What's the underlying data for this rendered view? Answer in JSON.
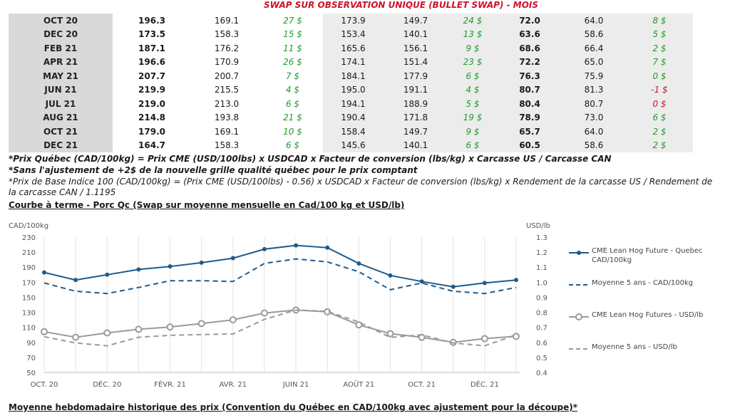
{
  "header": {
    "title": "SWAP SUR OBSERVATION UNIQUE (BULLET SWAP) - MOIS"
  },
  "table": {
    "rows": [
      [
        "OCT 20",
        "196.3",
        "169.1",
        "27 $",
        "173.9",
        "149.7",
        "24 $",
        "72.0",
        "64.0",
        "8 $"
      ],
      [
        "DEC 20",
        "173.5",
        "158.3",
        "15 $",
        "153.4",
        "140.1",
        "13 $",
        "63.6",
        "58.6",
        "5 $"
      ],
      [
        "FEB 21",
        "187.1",
        "176.2",
        "11 $",
        "165.6",
        "156.1",
        "9 $",
        "68.6",
        "66.4",
        "2 $"
      ],
      [
        "APR 21",
        "196.6",
        "170.9",
        "26 $",
        "174.1",
        "151.4",
        "23 $",
        "72.2",
        "65.0",
        "7 $"
      ],
      [
        "MAY 21",
        "207.7",
        "200.7",
        "7 $",
        "184.1",
        "177.9",
        "6 $",
        "76.3",
        "75.9",
        "0 $"
      ],
      [
        "JUN 21",
        "219.9",
        "215.5",
        "4 $",
        "195.0",
        "191.1",
        "4 $",
        "80.7",
        "81.3",
        "-1 $"
      ],
      [
        "JUL 21",
        "219.0",
        "213.0",
        "6 $",
        "194.1",
        "188.9",
        "5 $",
        "80.4",
        "80.7",
        "0 $"
      ],
      [
        "AUG 21",
        "214.8",
        "193.8",
        "21 $",
        "190.4",
        "171.8",
        "19 $",
        "78.9",
        "73.0",
        "6 $"
      ],
      [
        "OCT 21",
        "179.0",
        "169.1",
        "10 $",
        "158.4",
        "149.7",
        "9 $",
        "65.7",
        "64.0",
        "2 $"
      ],
      [
        "DEC 21",
        "164.7",
        "158.3",
        "6 $",
        "145.6",
        "140.1",
        "6 $",
        "60.5",
        "58.6",
        "2 $"
      ]
    ],
    "negative_cells": [
      [
        5,
        9
      ],
      [
        6,
        9
      ]
    ]
  },
  "notes": {
    "n1": "*Prix Québec (CAD/100kg) = Prix CME (USD/100lbs) x USDCAD x Facteur de conversion (lbs/kg) x Carcasse US / Carcasse CAN",
    "n2": "*Sans l'ajustement de +2$ de la nouvelle grille qualité québec pour le prix comptant",
    "n3": "*Prix de Base Indice 100 (CAD/100kg) = (Prix CME (USD/100lbs) - 0.56) x USDCAD x Facteur de conversion (lbs/kg) x Rendement de la carcasse US / Rendement de la carcasse CAN / 1.1195"
  },
  "section_titles": {
    "curve": "Courbe à terme - Porc Qc (Swap sur moyenne mensuelle en Cad/100 kg et USD/lb)",
    "weekly": "Moyenne hebdomadaire historique des prix (Convention du Québec en CAD/100kg avec ajustement pour la découpe)*"
  },
  "colors": {
    "blue": "#1f5b8c",
    "gray": "#9a9a9a",
    "red": "#d0112b",
    "green": "#1e9c2b"
  },
  "chart_data": {
    "type": "line",
    "left_axis_label": "CAD/100kg",
    "right_axis_label": "USD/lb",
    "left_ylim": [
      50,
      230
    ],
    "left_ticks": [
      50,
      70,
      90,
      110,
      130,
      150,
      170,
      190,
      210,
      230
    ],
    "right_ylim": [
      0.4,
      1.3
    ],
    "right_ticks": [
      "0.4",
      "0.5",
      "0.6",
      "0.7",
      "0.8",
      "0.9",
      "1.0",
      "1.1",
      "1.2",
      "1.3"
    ],
    "x_tick_labels": [
      "OCT. 20",
      "DÉC. 20",
      "FÉVR. 21",
      "AVR. 21",
      "JUIN 21",
      "AOÛT 21",
      "OCT. 21",
      "DÉC. 21"
    ],
    "x_count": 16,
    "x_tick_positions": [
      0,
      2,
      4,
      6,
      8,
      10,
      12,
      14
    ],
    "grid": true,
    "legend_placement": "right",
    "series": [
      {
        "name": "CME Lean Hog Future - Quebec CAD/100kg",
        "axis": "left",
        "style": "solid-marker",
        "color": "#1f5b8c",
        "values": [
          183,
          173,
          180,
          187,
          191,
          196,
          202,
          214,
          219,
          216,
          195,
          179,
          171,
          164,
          169,
          173
        ]
      },
      {
        "name": "Moyenne 5 ans - CAD/100kg",
        "axis": "left",
        "style": "dashed",
        "color": "#1f5b8c",
        "values": [
          169,
          158,
          155,
          163,
          172,
          172,
          171,
          195,
          201,
          197,
          184,
          160,
          169,
          158,
          155,
          163
        ]
      },
      {
        "name": "CME Lean Hog Futures - USD/lb",
        "axis": "right",
        "style": "solid-circle",
        "color": "#9a9a9a",
        "values": [
          0.671,
          0.634,
          0.663,
          0.687,
          0.702,
          0.725,
          0.75,
          0.795,
          0.815,
          0.803,
          0.716,
          0.658,
          0.633,
          0.6,
          0.625,
          0.64
        ]
      },
      {
        "name": "Moyenne 5 ans - USD/lb",
        "axis": "right",
        "style": "dashed",
        "color": "#9a9a9a",
        "values": [
          0.638,
          0.596,
          0.577,
          0.634,
          0.647,
          0.652,
          0.656,
          0.753,
          0.815,
          0.807,
          0.735,
          0.633,
          0.65,
          0.596,
          0.577,
          0.65
        ]
      }
    ]
  }
}
